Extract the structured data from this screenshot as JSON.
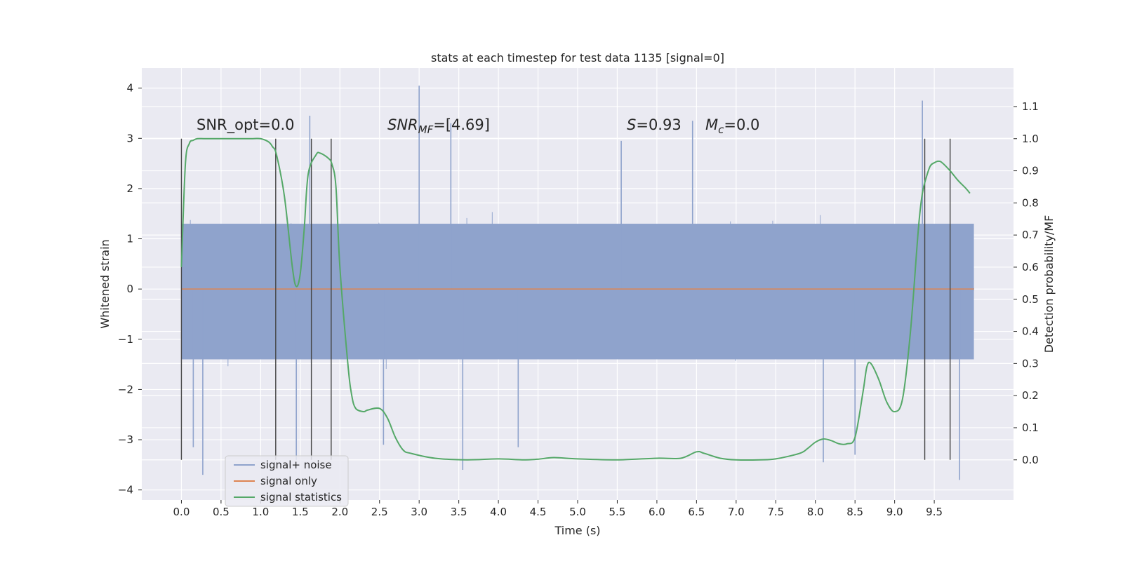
{
  "chart_data": {
    "type": "line",
    "title": "stats at each timestep for test data 1135 [signal=0]",
    "xlabel": "Time (s)",
    "ylabel": "Whitened strain",
    "y2label": "Detection probability/MF",
    "xlim": [
      -0.5,
      10.5
    ],
    "ylim": [
      -4.2,
      4.4
    ],
    "y2lim": [
      -0.125,
      1.22
    ],
    "x_ticks": [
      "0.0",
      "0.5",
      "1.0",
      "1.5",
      "2.0",
      "2.5",
      "3.0",
      "3.5",
      "4.0",
      "4.5",
      "5.0",
      "5.5",
      "6.0",
      "6.5",
      "7.0",
      "7.5",
      "8.0",
      "8.5",
      "9.0",
      "9.5"
    ],
    "y_ticks": [
      "4",
      "3",
      "2",
      "1",
      "0",
      "−1",
      "−2",
      "−3",
      "−4"
    ],
    "y2_ticks": [
      "1.1",
      "1.0",
      "0.9",
      "0.8",
      "0.7",
      "0.6",
      "0.5",
      "0.4",
      "0.3",
      "0.2",
      "0.1",
      "0.0"
    ],
    "grid": true,
    "legend_position": "lower-left",
    "annotations": {
      "snr_opt": "SNR_opt=0.0",
      "snr_mf_main": "SNR",
      "snr_mf_sub": "MF",
      "snr_mf_value": "=[4.69]",
      "s_main": "S",
      "s_value": "=0.93",
      "mc_main": "M",
      "mc_sub": "c",
      "mc_value": "=0.0"
    },
    "vertical_markers_x": [
      0.0,
      1.19,
      1.64,
      1.89,
      9.38,
      9.7
    ],
    "series": [
      {
        "name": "signal+ noise",
        "color": "#8fa3cc",
        "kind": "noise",
        "x_range": [
          0.0,
          10.0
        ],
        "core_range": [
          -1.4,
          1.3
        ],
        "typical_extent": [
          -2.0,
          2.0
        ],
        "notable_spikes": [
          [
            2.55,
            -3.1
          ],
          [
            3.0,
            4.05
          ],
          [
            3.4,
            3.3
          ],
          [
            3.55,
            -3.6
          ],
          [
            1.45,
            -3.4
          ],
          [
            1.62,
            3.45
          ],
          [
            4.25,
            -3.15
          ],
          [
            5.55,
            2.95
          ],
          [
            6.45,
            3.35
          ],
          [
            9.35,
            3.75
          ],
          [
            9.82,
            -3.8
          ],
          [
            8.1,
            -3.45
          ],
          [
            8.5,
            -3.3
          ],
          [
            0.27,
            -3.7
          ],
          [
            0.15,
            -3.15
          ]
        ]
      },
      {
        "name": "signal only",
        "color": "#dd8452",
        "kind": "flat",
        "x_range": [
          0.0,
          10.0
        ],
        "y_value": 0.0
      },
      {
        "name": "signal statistics",
        "color": "#55a868",
        "kind": "line",
        "axis": "right",
        "x": [
          0.0,
          0.05,
          0.1,
          0.15,
          0.2,
          0.3,
          0.5,
          0.7,
          0.9,
          1.0,
          1.1,
          1.15,
          1.2,
          1.3,
          1.4,
          1.45,
          1.5,
          1.55,
          1.6,
          1.7,
          1.75,
          1.85,
          1.9,
          1.95,
          2.0,
          2.1,
          2.15,
          2.2,
          2.3,
          2.35,
          2.5,
          2.6,
          2.7,
          2.8,
          2.9,
          3.2,
          3.6,
          4.0,
          4.3,
          4.5,
          4.7,
          5.0,
          5.5,
          6.0,
          6.3,
          6.5,
          6.6,
          6.8,
          7.0,
          7.3,
          7.5,
          7.8,
          7.9,
          8.0,
          8.1,
          8.2,
          8.3,
          8.4,
          8.5,
          8.6,
          8.65,
          8.7,
          8.8,
          8.9,
          9.0,
          9.1,
          9.2,
          9.3,
          9.35,
          9.4,
          9.45,
          9.5,
          9.55,
          9.6,
          9.7,
          9.8,
          9.9,
          9.95
        ],
        "y": [
          0.6,
          0.92,
          0.985,
          0.995,
          1.0,
          1.0,
          1.0,
          1.0,
          1.0,
          1.0,
          0.99,
          0.975,
          0.95,
          0.82,
          0.6,
          0.54,
          0.58,
          0.72,
          0.89,
          0.95,
          0.955,
          0.94,
          0.92,
          0.85,
          0.6,
          0.3,
          0.2,
          0.16,
          0.15,
          0.155,
          0.16,
          0.13,
          0.07,
          0.03,
          0.02,
          0.005,
          0.0,
          0.003,
          0.0,
          0.002,
          0.007,
          0.003,
          0.0,
          0.005,
          0.005,
          0.025,
          0.02,
          0.005,
          0.0,
          0.0,
          0.003,
          0.02,
          0.035,
          0.055,
          0.065,
          0.06,
          0.05,
          0.05,
          0.07,
          0.21,
          0.29,
          0.3,
          0.25,
          0.18,
          0.15,
          0.19,
          0.4,
          0.72,
          0.83,
          0.88,
          0.915,
          0.925,
          0.93,
          0.925,
          0.9,
          0.87,
          0.845,
          0.83
        ]
      }
    ]
  }
}
